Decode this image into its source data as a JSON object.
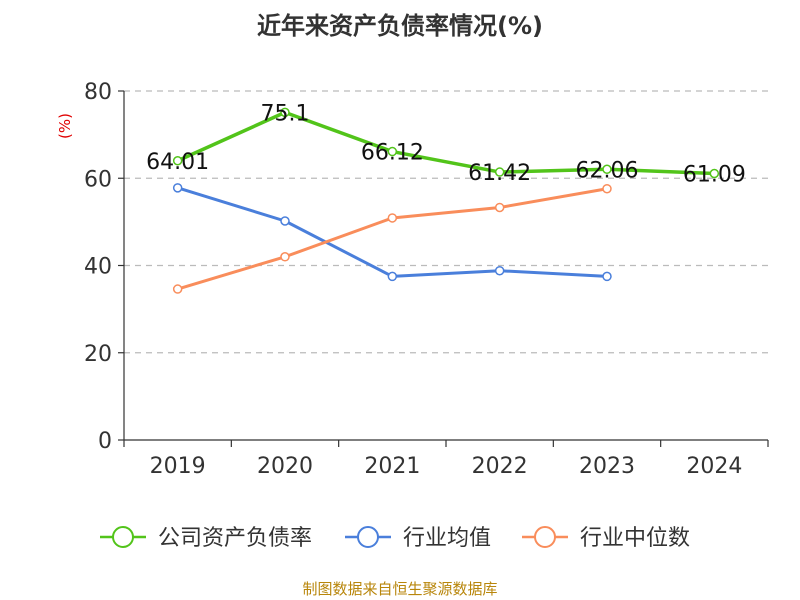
{
  "chart_data": {
    "type": "line",
    "title": "近年来资产负债率情况(%)",
    "ylabel": "(%)",
    "xlabel": "",
    "categories": [
      "2019",
      "2020",
      "2021",
      "2022",
      "2023",
      "2024"
    ],
    "ylim": [
      0,
      80
    ],
    "yticks": [
      0,
      20,
      40,
      60,
      80
    ],
    "grid": true,
    "legend_position": "bottom",
    "series": [
      {
        "name": "公司资产负债率",
        "color": "#52c41a",
        "values": [
          64.01,
          75.1,
          66.12,
          61.42,
          62.06,
          61.09
        ],
        "labels": [
          "64.01",
          "75.1",
          "66.12",
          "61.42",
          "62.06",
          "61.09"
        ]
      },
      {
        "name": "行业均值",
        "color": "#4a7fdb",
        "values": [
          57.8,
          50.2,
          37.5,
          38.8,
          37.5,
          null
        ]
      },
      {
        "name": "行业中位数",
        "color": "#f98d5b",
        "values": [
          34.6,
          42.0,
          50.9,
          53.3,
          57.6,
          null
        ]
      }
    ],
    "source": "制图数据来自恒生聚源数据库"
  }
}
